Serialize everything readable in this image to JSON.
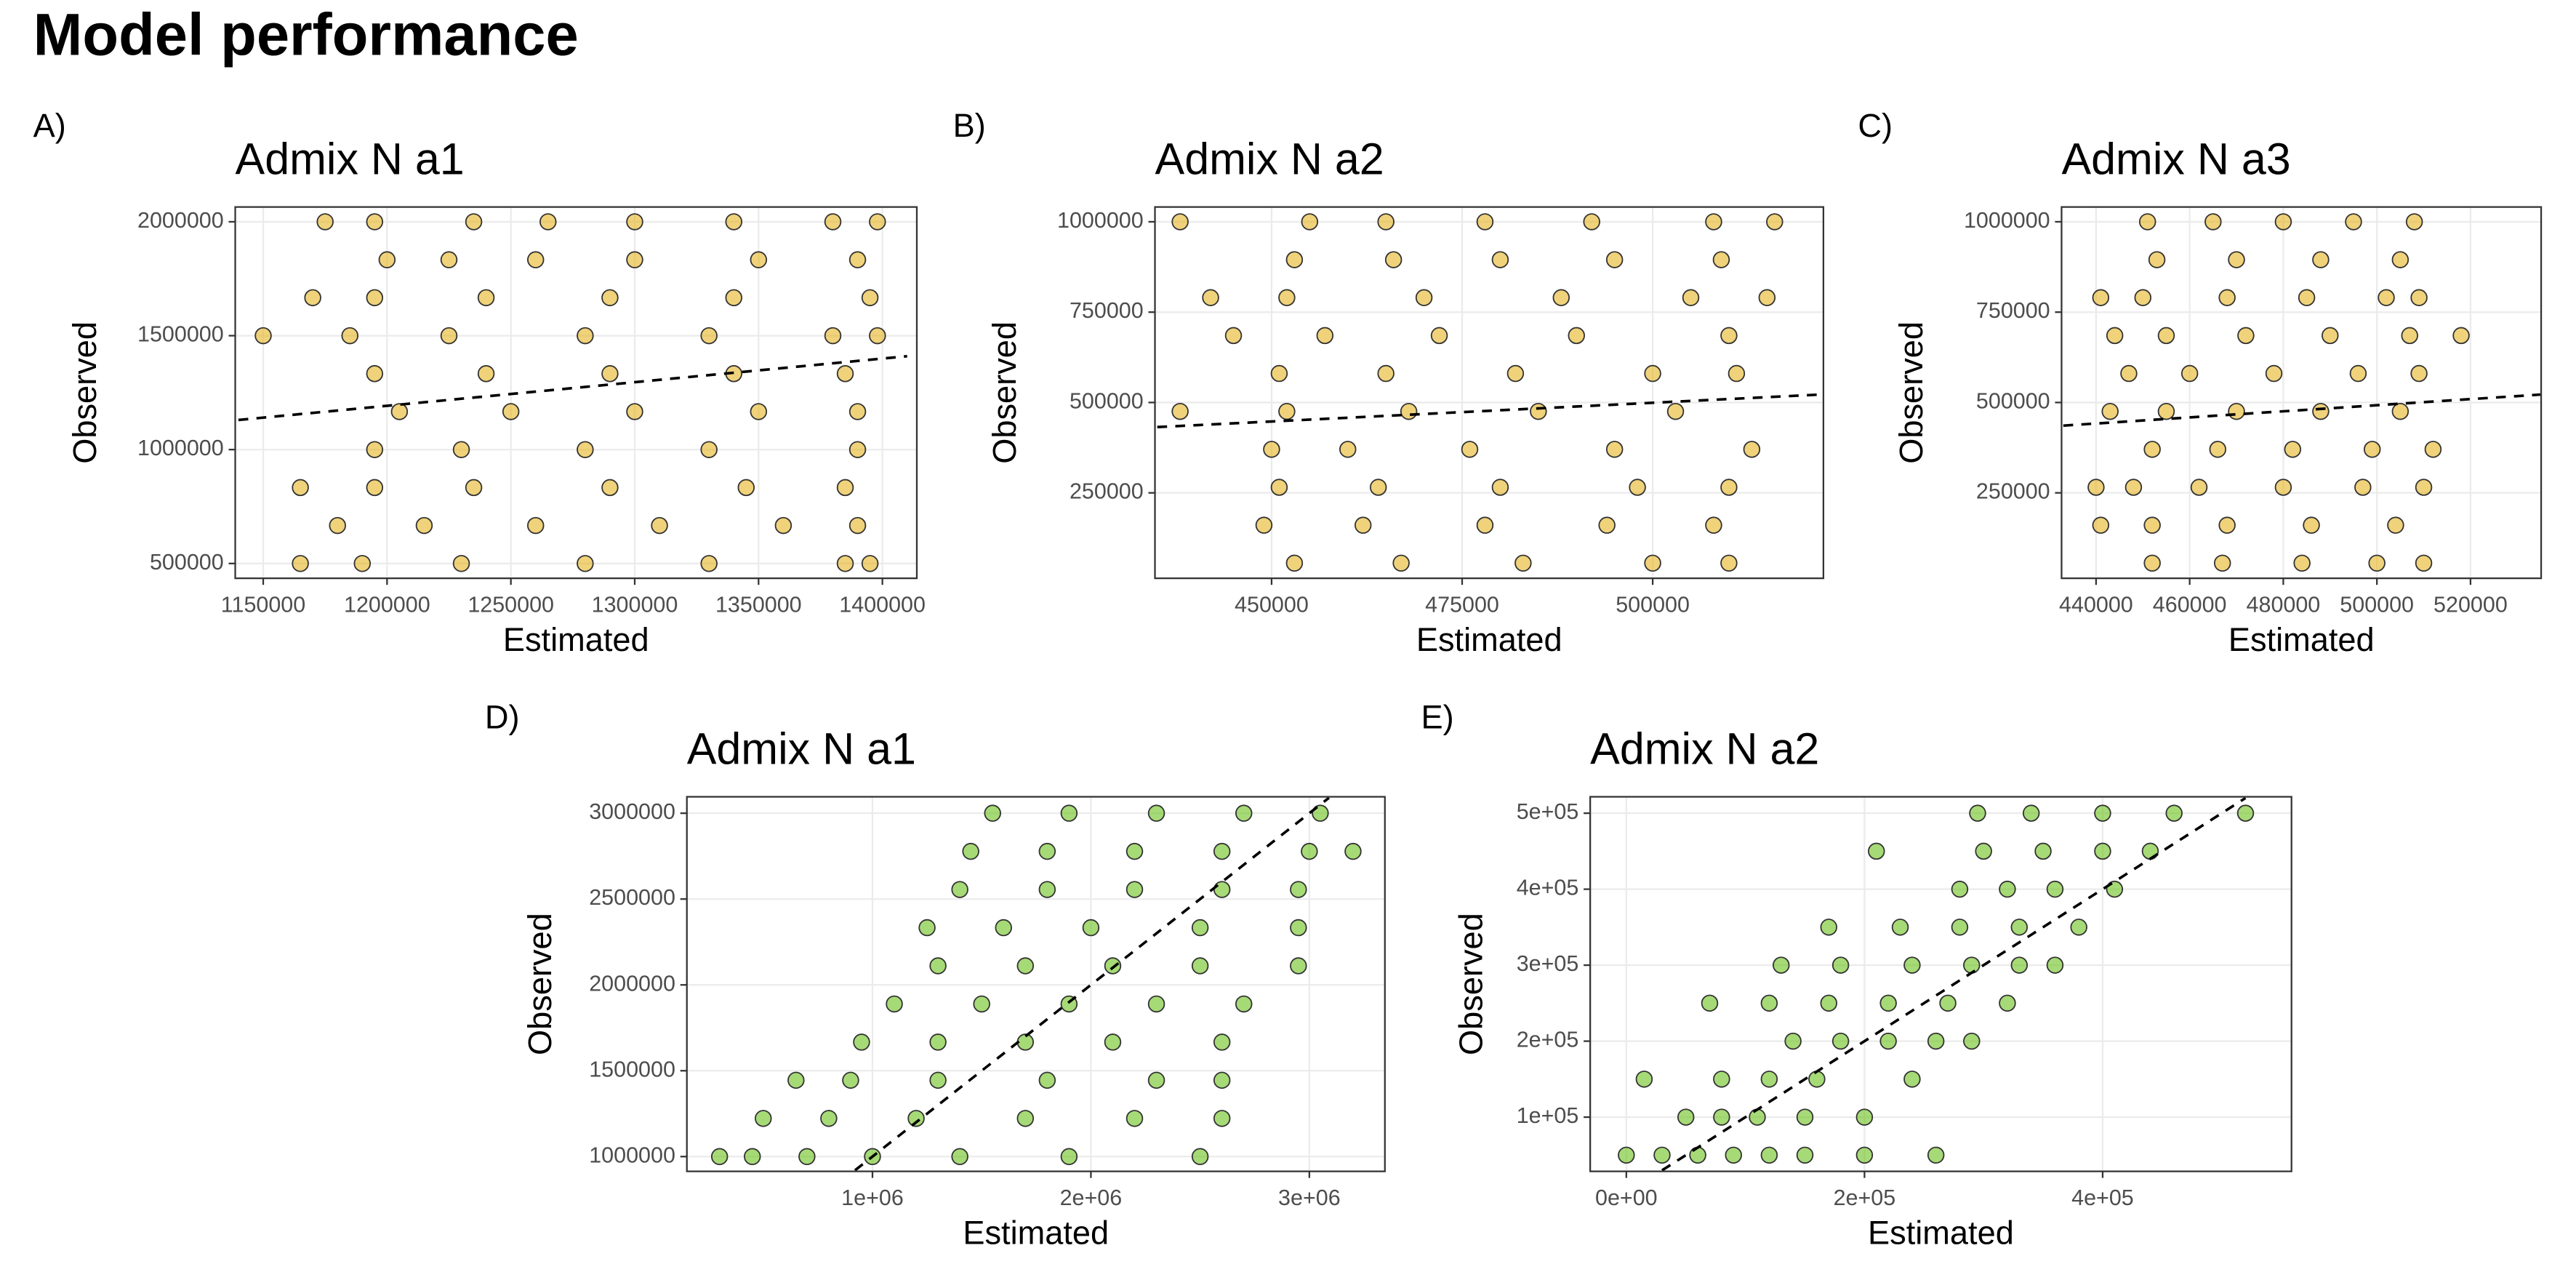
{
  "title": "Model performance",
  "chart_data": [
    {
      "type": "scatter",
      "label": "A)",
      "title": "Admix N a1",
      "x_label": "Estimated",
      "y_label": "Observed",
      "color": "#e6b422",
      "grid": true,
      "xlim": [
        1138700,
        1413900
      ],
      "ylim": [
        435100,
        2064900
      ],
      "xticks": [
        1150000,
        1200000,
        1250000,
        1300000,
        1350000,
        1400000
      ],
      "yticks": [
        500000,
        1000000,
        1500000,
        2000000
      ],
      "x": [
        1175000,
        1195000,
        1235000,
        1265000,
        1300000,
        1340000,
        1380000,
        1398000,
        1200000,
        1225000,
        1260000,
        1300000,
        1350000,
        1390000,
        1170000,
        1195000,
        1240000,
        1290000,
        1340000,
        1395000,
        1150000,
        1185000,
        1225000,
        1280000,
        1330000,
        1380000,
        1398000,
        1195000,
        1240000,
        1290000,
        1340000,
        1385000,
        1205000,
        1250000,
        1300000,
        1350000,
        1390000,
        1195000,
        1230000,
        1280000,
        1330000,
        1390000,
        1165000,
        1195000,
        1235000,
        1290000,
        1345000,
        1385000,
        1180000,
        1215000,
        1260000,
        1310000,
        1360000,
        1390000,
        1165000,
        1190000,
        1230000,
        1280000,
        1330000,
        1385000,
        1395000
      ],
      "y": [
        2000000,
        2000000,
        2000000,
        2000000,
        2000000,
        2000000,
        2000000,
        2000000,
        1833333,
        1833333,
        1833333,
        1833333,
        1833333,
        1833333,
        1666667,
        1666667,
        1666667,
        1666667,
        1666667,
        1666667,
        1500000,
        1500000,
        1500000,
        1500000,
        1500000,
        1500000,
        1500000,
        1333333,
        1333333,
        1333333,
        1333333,
        1333333,
        1166667,
        1166667,
        1166667,
        1166667,
        1166667,
        1000000,
        1000000,
        1000000,
        1000000,
        1000000,
        833333,
        833333,
        833333,
        833333,
        833333,
        833333,
        666667,
        666667,
        666667,
        666667,
        666667,
        666667,
        500000,
        500000,
        500000,
        500000,
        500000,
        500000,
        500000
      ],
      "fit": {
        "x": [
          1140000,
          1410000
        ],
        "y": [
          1130000,
          1410000
        ]
      }
    },
    {
      "type": "scatter",
      "label": "B)",
      "title": "Admix N a2",
      "x_label": "Estimated",
      "y_label": "Observed",
      "color": "#e6b422",
      "grid": true,
      "xlim": [
        434700,
        522400
      ],
      "ylim": [
        13640,
        1040900
      ],
      "xticks": [
        450000,
        475000,
        500000
      ],
      "yticks": [
        250000,
        500000,
        750000,
        1000000
      ],
      "x": [
        438000,
        455000,
        465000,
        478000,
        492000,
        508000,
        516000,
        453000,
        466000,
        480000,
        495000,
        509000,
        442000,
        452000,
        470000,
        488000,
        505000,
        515000,
        445000,
        457000,
        472000,
        490000,
        510000,
        451000,
        465000,
        482000,
        500000,
        511000,
        438000,
        452000,
        468000,
        485000,
        503000,
        450000,
        460000,
        476000,
        495000,
        513000,
        451000,
        464000,
        480000,
        498000,
        510000,
        449000,
        462000,
        478000,
        494000,
        508000,
        453000,
        467000,
        483000,
        500000,
        510000
      ],
      "y": [
        1000000,
        1000000,
        1000000,
        1000000,
        1000000,
        1000000,
        1000000,
        895062,
        895062,
        895062,
        895062,
        895062,
        790123,
        790123,
        790123,
        790123,
        790123,
        790123,
        685185,
        685185,
        685185,
        685185,
        685185,
        580247,
        580247,
        580247,
        580247,
        580247,
        475309,
        475309,
        475309,
        475309,
        475309,
        370370,
        370370,
        370370,
        370370,
        370370,
        265432,
        265432,
        265432,
        265432,
        265432,
        160494,
        160494,
        160494,
        160494,
        160494,
        55556,
        55556,
        55556,
        55556,
        55556
      ],
      "fit": {
        "x": [
          435000,
          522000
        ],
        "y": [
          432000,
          522000
        ]
      }
    },
    {
      "type": "scatter",
      "label": "C)",
      "title": "Admix N a3",
      "x_label": "Estimated",
      "y_label": "Observed",
      "color": "#e6b422",
      "grid": true,
      "xlim": [
        432630,
        535090
      ],
      "ylim": [
        13640,
        1040900
      ],
      "xticks": [
        440000,
        460000,
        480000,
        500000,
        520000
      ],
      "yticks": [
        250000,
        500000,
        750000,
        1000000
      ],
      "x": [
        451000,
        465000,
        480000,
        495000,
        508000,
        453000,
        470000,
        488000,
        505000,
        441000,
        450000,
        468000,
        485000,
        502000,
        509000,
        444000,
        455000,
        472000,
        490000,
        507000,
        518000,
        447000,
        460000,
        478000,
        496000,
        509000,
        443000,
        455000,
        470000,
        488000,
        505000,
        452000,
        466000,
        482000,
        499000,
        512000,
        440000,
        448000,
        462000,
        480000,
        497000,
        510000,
        441000,
        452000,
        468000,
        486000,
        504000,
        452000,
        467000,
        484000,
        500000,
        510000
      ],
      "y": [
        1000000,
        1000000,
        1000000,
        1000000,
        1000000,
        895062,
        895062,
        895062,
        895062,
        790123,
        790123,
        790123,
        790123,
        790123,
        790123,
        685185,
        685185,
        685185,
        685185,
        685185,
        685185,
        580247,
        580247,
        580247,
        580247,
        580247,
        475309,
        475309,
        475309,
        475309,
        475309,
        370370,
        370370,
        370370,
        370370,
        370370,
        265432,
        265432,
        265432,
        265432,
        265432,
        265432,
        160494,
        160494,
        160494,
        160494,
        160494,
        55556,
        55556,
        55556,
        55556,
        55556
      ],
      "fit": {
        "x": [
          433000,
          535000
        ],
        "y": [
          436000,
          522000
        ]
      }
    },
    {
      "type": "scatter",
      "label": "D)",
      "title": "Admix N a1",
      "x_label": "Estimated",
      "y_label": "Observed",
      "color": "#6ac21a",
      "grid": true,
      "xlim": [
        150400,
        3345900
      ],
      "ylim": [
        913900,
        3095700
      ],
      "xticks": [
        {
          "value": 1000000,
          "label": "1e+06"
        },
        {
          "value": 2000000,
          "label": "2e+06"
        },
        {
          "value": 3000000,
          "label": "3e+06"
        }
      ],
      "yticks": [
        1000000,
        1500000,
        2000000,
        2500000,
        3000000
      ],
      "x": [
        300000,
        450000,
        700000,
        1000000,
        1400000,
        1900000,
        2500000,
        500000,
        800000,
        1200000,
        1700000,
        2200000,
        2600000,
        650000,
        900000,
        1300000,
        1800000,
        2300000,
        2600000,
        950000,
        1300000,
        1700000,
        2100000,
        2600000,
        1100000,
        1500000,
        1900000,
        2300000,
        2700000,
        1300000,
        1700000,
        2100000,
        2500000,
        2950000,
        1250000,
        1600000,
        2000000,
        2500000,
        2950000,
        1400000,
        1800000,
        2200000,
        2600000,
        2950000,
        1450000,
        1800000,
        2200000,
        2600000,
        3000000,
        3200000,
        1550000,
        1900000,
        2300000,
        2700000,
        3050000
      ],
      "y": [
        1000000,
        1000000,
        1000000,
        1000000,
        1000000,
        1000000,
        1000000,
        1222222,
        1222222,
        1222222,
        1222222,
        1222222,
        1222222,
        1444444,
        1444444,
        1444444,
        1444444,
        1444444,
        1444444,
        1666667,
        1666667,
        1666667,
        1666667,
        1666667,
        1888889,
        1888889,
        1888889,
        1888889,
        1888889,
        2111111,
        2111111,
        2111111,
        2111111,
        2111111,
        2333333,
        2333333,
        2333333,
        2333333,
        2333333,
        2555556,
        2555556,
        2555556,
        2555556,
        2555556,
        2777778,
        2777778,
        2777778,
        2777778,
        2777778,
        2777778,
        3000000,
        3000000,
        3000000,
        3000000,
        3000000
      ],
      "fit": {
        "x": [
          920000,
          3090000
        ],
        "y": [
          920000,
          3090000
        ]
      }
    },
    {
      "type": "scatter",
      "label": "E)",
      "title": "Admix N a2",
      "x_label": "Estimated",
      "y_label": "Observed",
      "color": "#6ac21a",
      "grid": true,
      "xlim": [
        -30340,
        558600
      ],
      "ylim": [
        28650,
        521600
      ],
      "xticks": [
        {
          "value": 0,
          "label": "0e+00"
        },
        {
          "value": 200000,
          "label": "2e+05"
        },
        {
          "value": 400000,
          "label": "4e+05"
        }
      ],
      "yticks": [
        {
          "value": 100000,
          "label": "1e+05"
        },
        {
          "value": 200000,
          "label": "2e+05"
        },
        {
          "value": 300000,
          "label": "3e+05"
        },
        {
          "value": 400000,
          "label": "4e+05"
        },
        {
          "value": 500000,
          "label": "5e+05"
        }
      ],
      "x": [
        0,
        30000,
        60000,
        90000,
        120000,
        150000,
        200000,
        260000,
        50000,
        80000,
        110000,
        150000,
        200000,
        15000,
        80000,
        120000,
        160000,
        240000,
        140000,
        180000,
        220000,
        260000,
        290000,
        70000,
        120000,
        170000,
        220000,
        270000,
        320000,
        130000,
        180000,
        240000,
        290000,
        330000,
        360000,
        170000,
        230000,
        280000,
        330000,
        380000,
        280000,
        320000,
        360000,
        410000,
        210000,
        300000,
        350000,
        400000,
        440000,
        295000,
        340000,
        400000,
        460000,
        520000
      ],
      "y": [
        50000,
        50000,
        50000,
        50000,
        50000,
        50000,
        50000,
        50000,
        100000,
        100000,
        100000,
        100000,
        100000,
        150000,
        150000,
        150000,
        150000,
        150000,
        200000,
        200000,
        200000,
        200000,
        200000,
        250000,
        250000,
        250000,
        250000,
        250000,
        250000,
        300000,
        300000,
        300000,
        300000,
        300000,
        300000,
        350000,
        350000,
        350000,
        350000,
        350000,
        400000,
        400000,
        400000,
        400000,
        450000,
        450000,
        450000,
        450000,
        450000,
        500000,
        500000,
        500000,
        500000,
        500000
      ],
      "fit": {
        "x": [
          30000,
          520000
        ],
        "y": [
          30000,
          520000
        ]
      }
    }
  ]
}
